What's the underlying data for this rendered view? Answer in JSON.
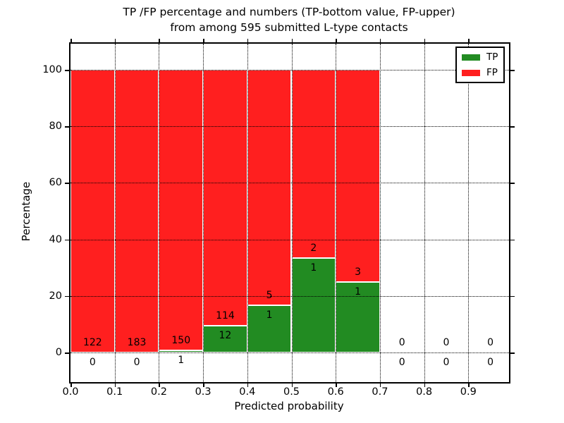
{
  "figure": {
    "background": "#FFFFFF"
  },
  "chart_data": {
    "type": "bar",
    "stacked": true,
    "title": "TP /FP percentage and numbers (TP-bottom value, FP-upper)",
    "subtitle": "from among 595 submitted L-type contacts",
    "xlabel": "Predicted probability",
    "ylabel": "Percentage",
    "x_tick_labels": [
      "0.0",
      "0.1",
      "0.2",
      "0.3",
      "0.4",
      "0.5",
      "0.6",
      "0.7",
      "0.8",
      "0.9"
    ],
    "y_tick_values": [
      0,
      20,
      40,
      60,
      80,
      100
    ],
    "xlim": [
      0.0,
      0.99
    ],
    "ylim": [
      -10,
      110
    ],
    "grid": "dotted",
    "legend_position": "upper-right",
    "legend": [
      {
        "label": "TP",
        "series": "tp"
      },
      {
        "label": "FP",
        "series": "fp"
      }
    ],
    "colors": {
      "tp": "#228B22",
      "fp": "#FF1F1F",
      "bar_edge": "#FFFFFF",
      "grid": "#000000",
      "text": "#000000"
    },
    "bins": [
      {
        "x_range": [
          0.0,
          0.1
        ],
        "tp_count": 0,
        "fp_count": 122,
        "tp_pct": 0.0,
        "fp_pct": 100.0
      },
      {
        "x_range": [
          0.1,
          0.2
        ],
        "tp_count": 0,
        "fp_count": 183,
        "tp_pct": 0.0,
        "fp_pct": 100.0
      },
      {
        "x_range": [
          0.2,
          0.3
        ],
        "tp_count": 1,
        "fp_count": 150,
        "tp_pct": 0.66,
        "fp_pct": 99.34
      },
      {
        "x_range": [
          0.3,
          0.4
        ],
        "tp_count": 12,
        "fp_count": 114,
        "tp_pct": 9.52,
        "fp_pct": 90.48
      },
      {
        "x_range": [
          0.4,
          0.5
        ],
        "tp_count": 1,
        "fp_count": 5,
        "tp_pct": 16.67,
        "fp_pct": 83.33
      },
      {
        "x_range": [
          0.5,
          0.6
        ],
        "tp_count": 1,
        "fp_count": 2,
        "tp_pct": 33.33,
        "fp_pct": 66.67
      },
      {
        "x_range": [
          0.6,
          0.7
        ],
        "tp_count": 1,
        "fp_count": 3,
        "tp_pct": 25.0,
        "fp_pct": 75.0
      },
      {
        "x_range": [
          0.7,
          0.8
        ],
        "tp_count": 0,
        "fp_count": 0,
        "tp_pct": 0.0,
        "fp_pct": 0.0
      },
      {
        "x_range": [
          0.8,
          0.9
        ],
        "tp_count": 0,
        "fp_count": 0,
        "tp_pct": 0.0,
        "fp_pct": 0.0
      },
      {
        "x_range": [
          0.9,
          1.0
        ],
        "tp_count": 0,
        "fp_count": 0,
        "tp_pct": 0.0,
        "fp_pct": 0.0
      }
    ]
  }
}
